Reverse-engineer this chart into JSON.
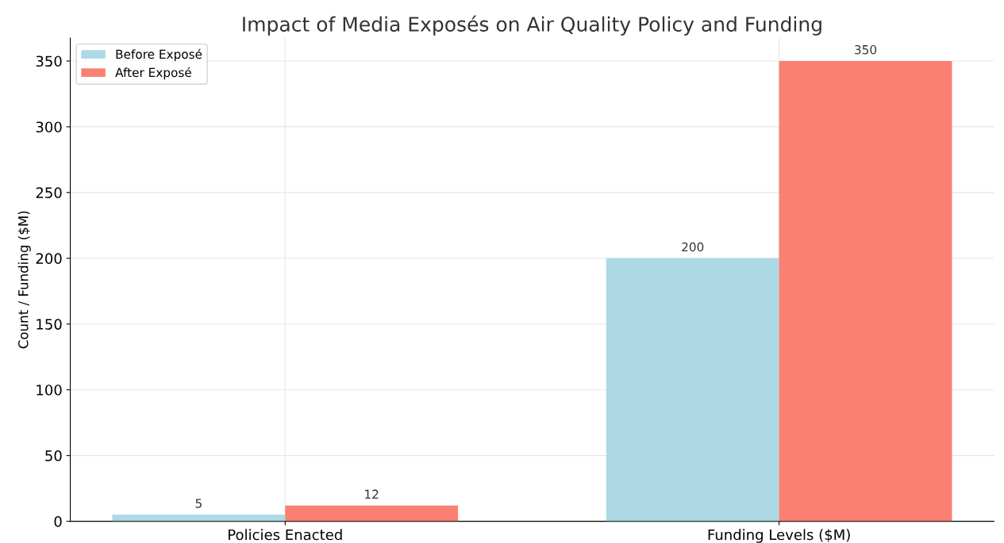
{
  "chart_data": {
    "type": "bar",
    "title": "Impact of Media Exposés on Air Quality Policy and Funding",
    "ylabel": "Count / Funding ($M)",
    "categories": [
      "Policies Enacted",
      "Funding Levels ($M)"
    ],
    "series": [
      {
        "name": "Before Exposé",
        "color": "#add8e6",
        "values": [
          5,
          200
        ]
      },
      {
        "name": "After Exposé",
        "color": "#fa8072",
        "values": [
          12,
          350
        ]
      }
    ],
    "ylim": [
      0,
      367.5
    ],
    "yticks": [
      0,
      50,
      100,
      150,
      200,
      250,
      300,
      350
    ],
    "grid": true,
    "legend": "top left",
    "data_labels": true
  }
}
